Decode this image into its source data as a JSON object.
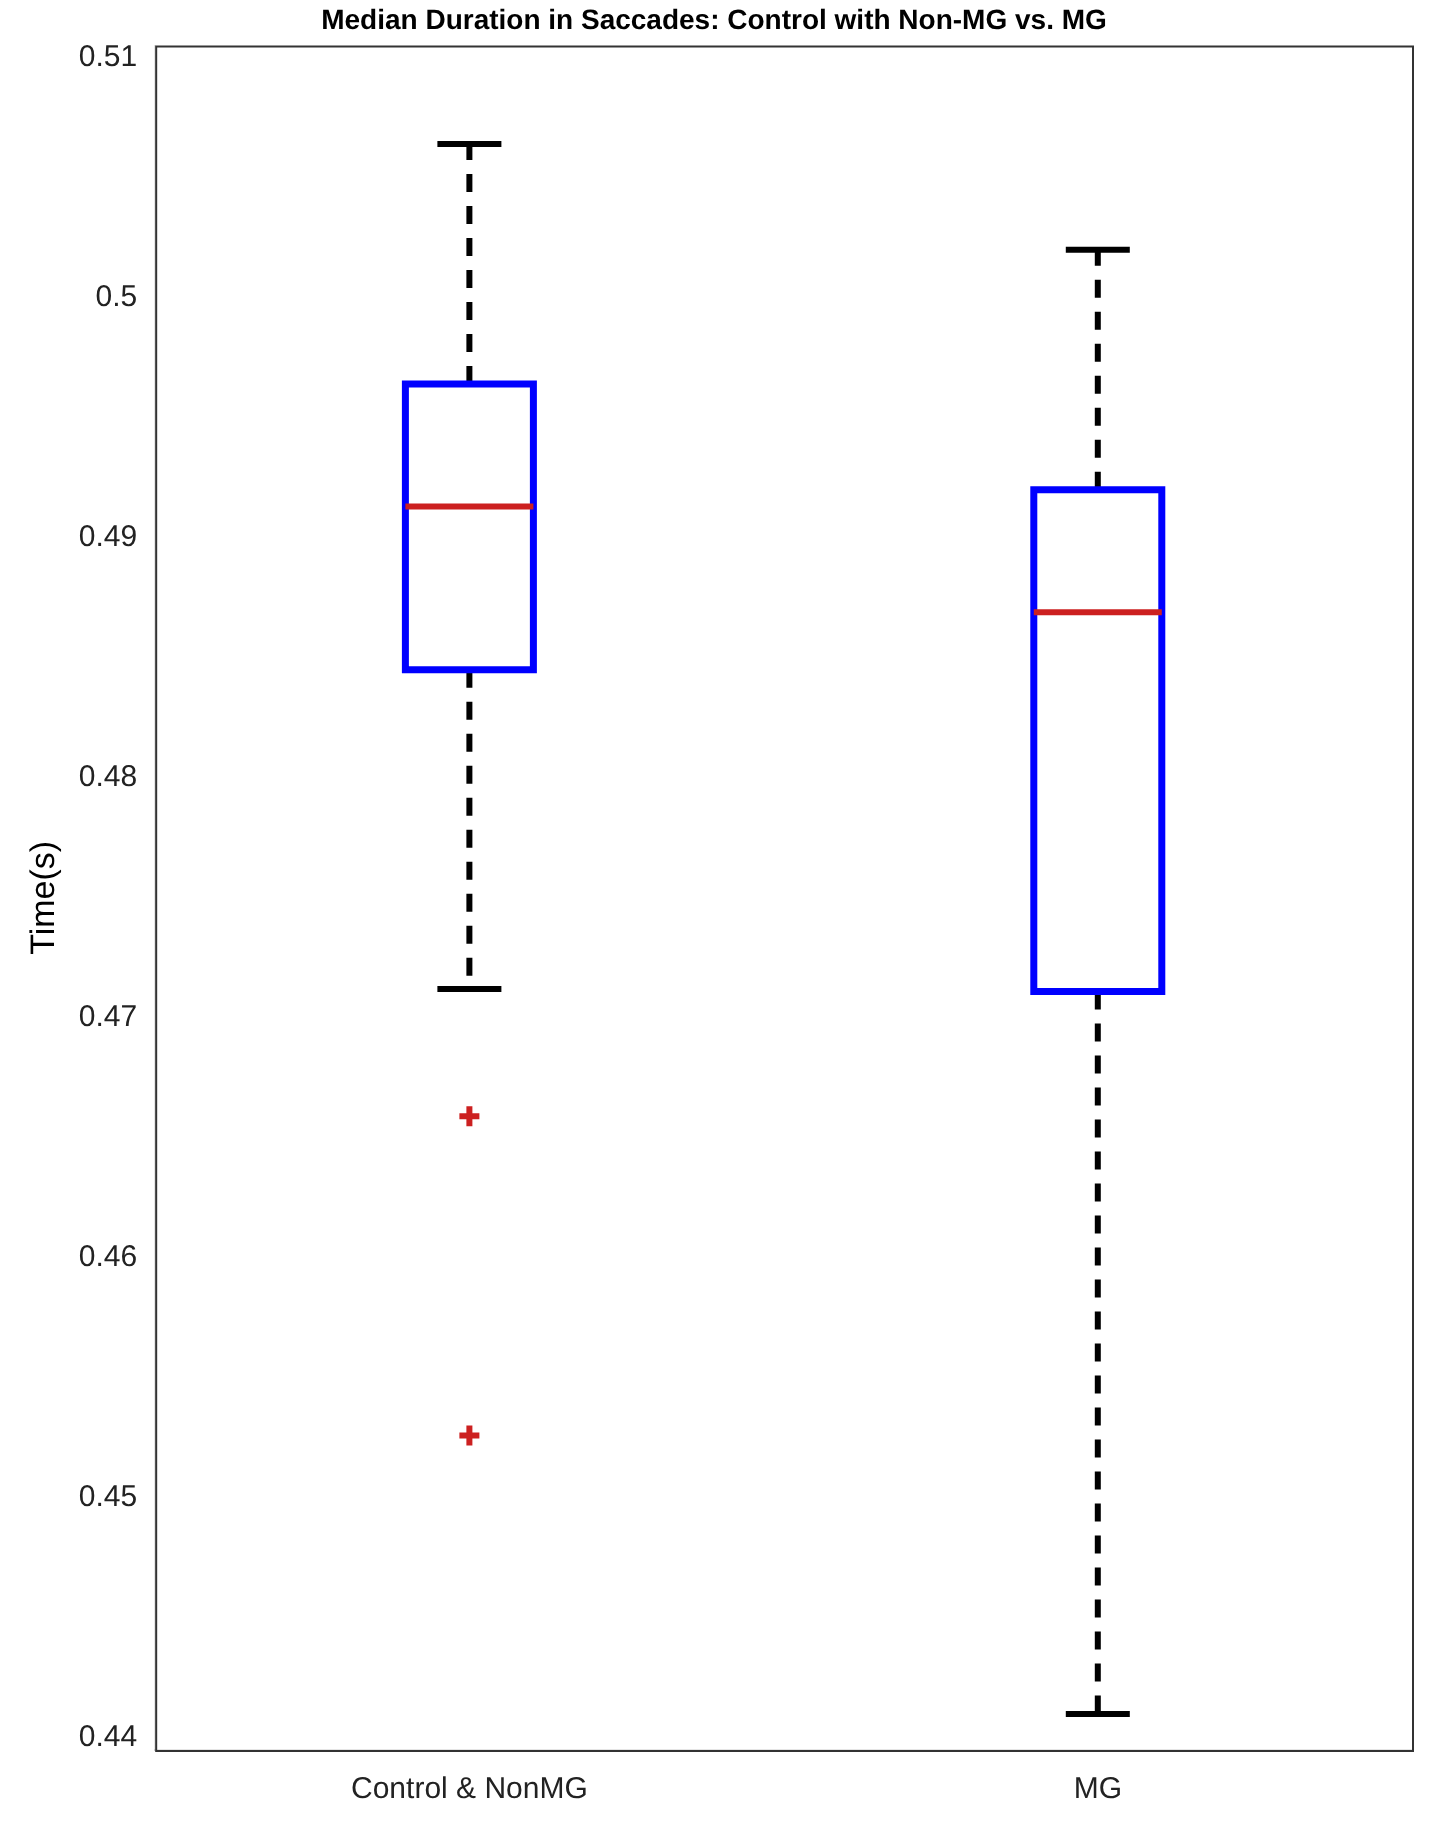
{
  "chart_data": {
    "type": "box",
    "title": "Median Duration in Saccades: Control with Non-MG vs. MG",
    "ylabel": "Time(s)",
    "categories": [
      "Control & NonMG",
      "MG"
    ],
    "boxes": [
      {
        "low": 0.4712,
        "q1": 0.4845,
        "median": 0.4913,
        "q3": 0.4964,
        "high": 0.5064,
        "outliers": [
          0.4659,
          0.4526
        ]
      },
      {
        "low": 0.441,
        "q1": 0.4711,
        "median": 0.4869,
        "q3": 0.492,
        "high": 0.502
      }
    ],
    "color": "#0000ff",
    "ylim": [
      0.4395,
      0.5105
    ],
    "yticks": [
      0.44,
      0.45,
      0.46,
      0.47,
      0.48,
      0.49,
      0.5,
      0.51
    ],
    "marker": "cross",
    "line_style": "dashed"
  }
}
